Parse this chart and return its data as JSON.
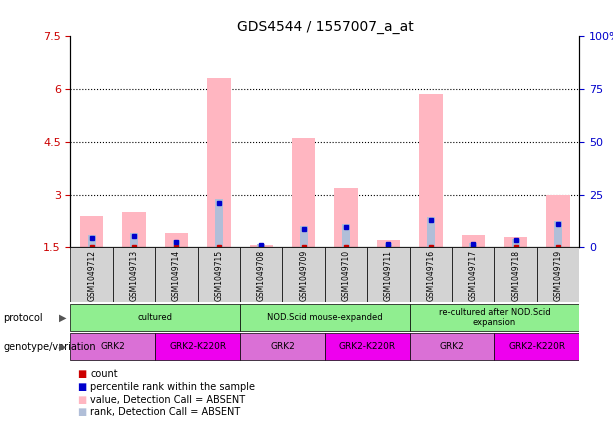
{
  "title": "GDS4544 / 1557007_a_at",
  "samples": [
    "GSM1049712",
    "GSM1049713",
    "GSM1049714",
    "GSM1049715",
    "GSM1049708",
    "GSM1049709",
    "GSM1049710",
    "GSM1049711",
    "GSM1049716",
    "GSM1049717",
    "GSM1049718",
    "GSM1049719"
  ],
  "value_absent": [
    2.4,
    2.5,
    1.9,
    6.3,
    1.56,
    4.6,
    3.2,
    1.7,
    5.85,
    1.85,
    1.8,
    3.0
  ],
  "rank_absent": [
    1.85,
    1.92,
    1.7,
    2.88,
    1.59,
    2.12,
    2.17,
    1.62,
    2.37,
    1.64,
    1.75,
    2.25
  ],
  "count_val": [
    1.505,
    1.505,
    1.505,
    1.505,
    1.505,
    1.505,
    1.505,
    1.505,
    1.505,
    1.505,
    1.505,
    1.505
  ],
  "percentile_val": [
    1.76,
    1.83,
    1.65,
    2.77,
    1.565,
    2.02,
    2.09,
    1.59,
    2.27,
    1.6,
    1.7,
    2.17
  ],
  "ylim_left": [
    1.5,
    7.5
  ],
  "ylim_right": [
    0,
    100
  ],
  "yticks_left": [
    1.5,
    3.0,
    4.5,
    6.0,
    7.5
  ],
  "ytick_labels_left": [
    "1.5",
    "3",
    "4.5",
    "6",
    "7.5"
  ],
  "yticks_right": [
    0,
    25,
    50,
    75,
    100
  ],
  "ytick_labels_right": [
    "0",
    "25",
    "50",
    "75",
    "100%"
  ],
  "hlines": [
    3.0,
    4.5,
    6.0
  ],
  "color_value_absent": "#FFB6C1",
  "color_rank_absent": "#B0BED8",
  "color_count": "#CC0000",
  "color_percentile": "#0000CC",
  "pink_bar_width": 0.55,
  "blue_bar_width": 0.18,
  "protocol_labels": [
    "cultured",
    "NOD.Scid mouse-expanded",
    "re-cultured after NOD.Scid\nexpansion"
  ],
  "protocol_ranges": [
    [
      0,
      3
    ],
    [
      4,
      7
    ],
    [
      8,
      11
    ]
  ],
  "protocol_color": "#90EE90",
  "genotype_labels": [
    "GRK2",
    "GRK2-K220R",
    "GRK2",
    "GRK2-K220R",
    "GRK2",
    "GRK2-K220R"
  ],
  "genotype_ranges": [
    [
      0,
      1
    ],
    [
      2,
      3
    ],
    [
      4,
      5
    ],
    [
      6,
      7
    ],
    [
      8,
      9
    ],
    [
      10,
      11
    ]
  ],
  "genotype_color_1": "#DA70D6",
  "genotype_color_2": "#EE00EE",
  "legend_items": [
    {
      "label": "count",
      "color": "#CC0000"
    },
    {
      "label": "percentile rank within the sample",
      "color": "#0000CC"
    },
    {
      "label": "value, Detection Call = ABSENT",
      "color": "#FFB6C1"
    },
    {
      "label": "rank, Detection Call = ABSENT",
      "color": "#B0BED8"
    }
  ],
  "background_color": "#FFFFFF",
  "tick_label_color_left": "#CC0000",
  "tick_label_color_right": "#0000CC",
  "sample_col_color": "#D3D3D3"
}
